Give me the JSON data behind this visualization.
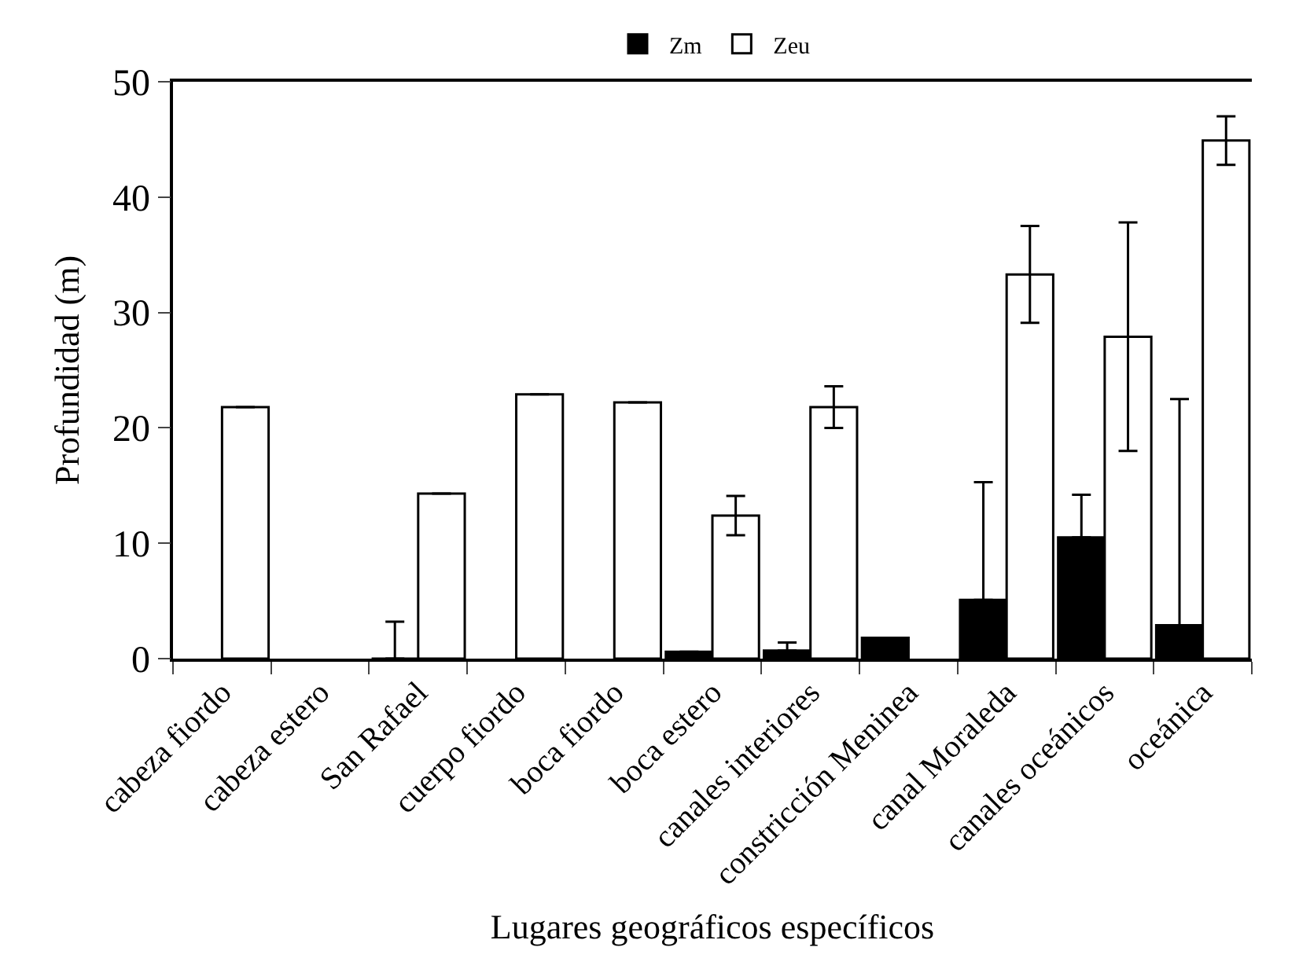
{
  "chart_data": {
    "type": "bar",
    "xlabel": "Lugares geográficos específicos",
    "ylabel": "Profundidad (m)",
    "categories": [
      "cabeza fiordo",
      "cabeza estero",
      "San Rafael",
      "cuerpo fiordo",
      "boca fiordo",
      "boca estero",
      "canales interiores",
      "constricción Meninea",
      "canal Moraleda",
      "canales oceánicos",
      "oceánica"
    ],
    "series": [
      {
        "name": "Zm",
        "color": "#000000",
        "values": [
          null,
          null,
          0,
          null,
          null,
          0.6,
          0.7,
          1.8,
          5.1,
          10.5,
          2.9
        ],
        "errors": [
          null,
          null,
          [
            0,
            3.2
          ],
          null,
          null,
          null,
          [
            0.7,
            1.4
          ],
          null,
          [
            5.1,
            15.3
          ],
          [
            10.5,
            14.2
          ],
          [
            2.9,
            22.5
          ]
        ]
      },
      {
        "name": "Zeu",
        "color": "#ffffff",
        "values": [
          21.8,
          null,
          14.3,
          22.9,
          22.2,
          12.4,
          21.8,
          null,
          33.3,
          27.9,
          44.9
        ],
        "errors": [
          null,
          null,
          null,
          null,
          null,
          1.7,
          1.8,
          null,
          4.2,
          9.9,
          2.1
        ]
      }
    ],
    "ylim": [
      0,
      50
    ],
    "yticks": [
      0,
      10,
      20,
      30,
      40,
      50
    ],
    "legend": "top"
  }
}
